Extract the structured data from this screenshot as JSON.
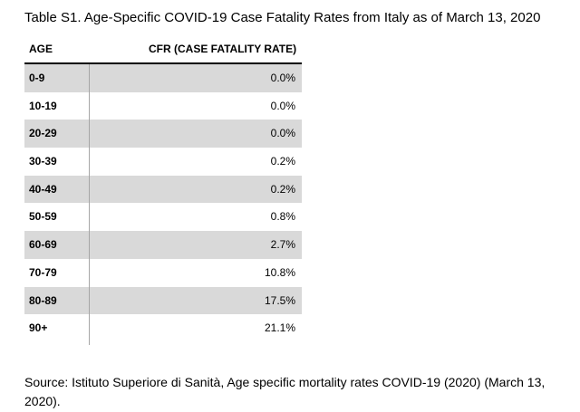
{
  "title": "Table S1. Age-Specific COVID-19 Case Fatality Rates from Italy as of March 13, 2020",
  "table": {
    "headers": {
      "age": "AGE",
      "cfr": "CFR (CASE FATALITY RATE)"
    },
    "rows": [
      {
        "age": "0-9",
        "cfr": "0.0%"
      },
      {
        "age": "10-19",
        "cfr": "0.0%"
      },
      {
        "age": "20-29",
        "cfr": "0.0%"
      },
      {
        "age": "30-39",
        "cfr": "0.2%"
      },
      {
        "age": "40-49",
        "cfr": "0.2%"
      },
      {
        "age": "50-59",
        "cfr": "0.8%"
      },
      {
        "age": "60-69",
        "cfr": "2.7%"
      },
      {
        "age": "70-79",
        "cfr": "10.8%"
      },
      {
        "age": "80-89",
        "cfr": "17.5%"
      },
      {
        "age": "90+",
        "cfr": "21.1%"
      }
    ]
  },
  "source": "Source: Istituto Superiore di Sanità, Age specific mortality rates COVID-19 (2020) (March 13, 2020).",
  "colors": {
    "shade": "#d9d9d9",
    "rule": "#000000",
    "divider": "#a6a6a6"
  }
}
